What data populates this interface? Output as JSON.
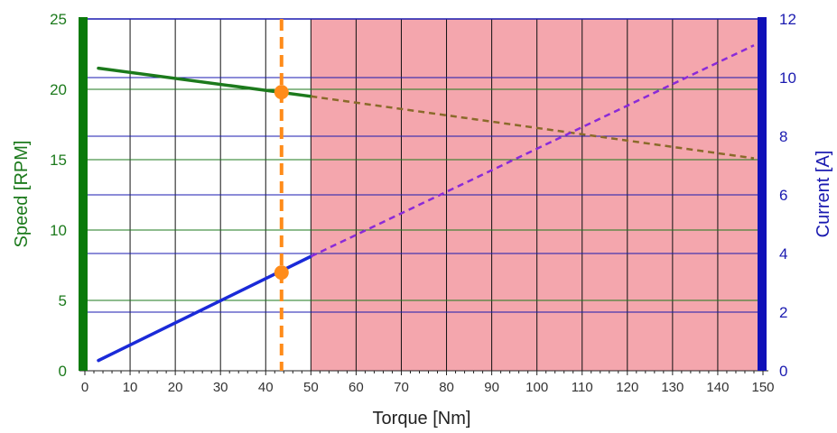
{
  "chart_data": {
    "type": "line",
    "x_axis": {
      "label": "Torque [Nm]",
      "min": 0,
      "max": 150,
      "tick_step": 10
    },
    "y_left": {
      "label": "Speed [RPM]",
      "min": 0,
      "max": 25,
      "tick_step": 5,
      "color": "#1c7a1c"
    },
    "y_right": {
      "label": "Current [A]",
      "min": 0,
      "max": 12,
      "tick_step": 2,
      "color": "#1a1ab0"
    },
    "overload_region": {
      "x_start": 50,
      "x_end": 150,
      "color": "#f4a6ad"
    },
    "operating_point": {
      "torque": 43.5,
      "speed": 19.8,
      "current": 3.35,
      "color": "#ff8c1a"
    },
    "series": [
      {
        "axis": "left",
        "color": "#1c7a1c",
        "solid": {
          "x": [
            3,
            50
          ],
          "y": [
            21.5,
            19.5
          ]
        },
        "dashed": {
          "x": [
            50,
            148
          ],
          "y": [
            19.5,
            15.1
          ],
          "color": "#8a6a2a"
        }
      },
      {
        "axis": "right",
        "color": "#1a2ad8",
        "solid": {
          "x": [
            3,
            50
          ],
          "y": [
            0.35,
            3.9
          ]
        },
        "dashed": {
          "x": [
            50,
            148
          ],
          "y": [
            3.9,
            11.1
          ],
          "color": "#8a2ad8"
        }
      }
    ],
    "grid": true,
    "legend": "none"
  }
}
